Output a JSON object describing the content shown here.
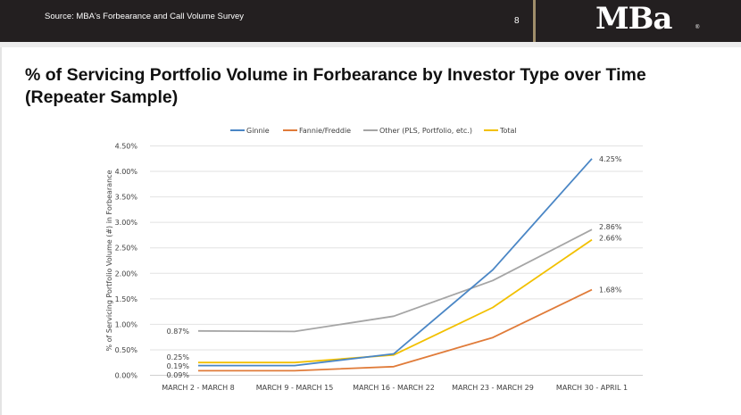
{
  "header": {
    "source": "Source: MBA's Forbearance and Call Volume Survey",
    "page_number": "8",
    "logo_text": "MBa",
    "logo_reg": "®"
  },
  "page_title": "% of Servicing Portfolio Volume in Forbearance by Investor Type over Time (Repeater Sample)",
  "chart_data": {
    "type": "line",
    "title": "",
    "xlabel": "",
    "ylabel": "% of Servicing Portfolio Volume (#) in Forbearance",
    "categories": [
      "MARCH 2 - MARCH 8",
      "MARCH 9 - MARCH 15",
      "MARCH 16 - MARCH 22",
      "MARCH 23 - MARCH 29",
      "MARCH 30 - APRIL 1"
    ],
    "ylim": [
      0,
      4.5
    ],
    "yticks": [
      0,
      0.5,
      1.0,
      1.5,
      2.0,
      2.5,
      3.0,
      3.5,
      4.0,
      4.5
    ],
    "ytick_labels": [
      "0.00%",
      "0.50%",
      "1.00%",
      "1.50%",
      "2.00%",
      "2.50%",
      "3.00%",
      "3.50%",
      "4.00%",
      "4.50%"
    ],
    "grid": true,
    "legend_position": "top-center",
    "series": [
      {
        "name": "Ginnie",
        "color": "#4a86c5",
        "values": [
          0.19,
          0.19,
          0.42,
          2.07,
          4.25
        ],
        "labels": [
          "0.19%",
          null,
          null,
          null,
          "4.25%"
        ]
      },
      {
        "name": "Fannie/Freddie",
        "color": "#e07b39",
        "values": [
          0.09,
          0.09,
          0.17,
          0.74,
          1.68
        ],
        "labels": [
          "0.09%",
          null,
          null,
          null,
          "1.68%"
        ]
      },
      {
        "name": "Other (PLS, Portfolio, etc.)",
        "color": "#a5a5a5",
        "values": [
          0.87,
          0.86,
          1.16,
          1.86,
          2.86
        ],
        "labels": [
          "0.87%",
          null,
          null,
          null,
          "2.86%"
        ]
      },
      {
        "name": "Total",
        "color": "#f2c000",
        "values": [
          0.25,
          0.25,
          0.4,
          1.33,
          2.66
        ],
        "labels": [
          "0.25%",
          null,
          null,
          null,
          "2.66%"
        ]
      }
    ]
  }
}
